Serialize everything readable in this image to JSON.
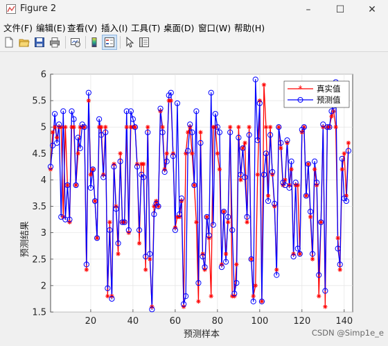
{
  "window": {
    "title": "Figure 2",
    "minimize_glyph": "–",
    "maximize_glyph": "☐",
    "close_glyph": "✕",
    "icon": "matlab-figure-icon"
  },
  "menu": [
    "文件(F)",
    "编辑(E)",
    "查看(V)",
    "插入(I)",
    "工具(T)",
    "桌面(D)",
    "窗口(W)",
    "帮助(H)"
  ],
  "toolbar": {
    "icons": [
      "new-figure-icon",
      "open-file-icon",
      "save-icon",
      "print-icon",
      "link-plot-icon",
      "insert-colorbar-icon",
      "insert-legend-icon",
      "edit-plot-arrow-icon",
      "property-inspector-icon"
    ]
  },
  "watermark": "CSDN @Simp1e_e",
  "colors": {
    "series_true": "#ff0000",
    "series_pred": "#0000ff",
    "axes_bg": "#ffffff",
    "figure_bg": "#f0f0f0"
  },
  "chart_data": {
    "type": "line",
    "xlabel": "预测样本",
    "ylabel": "预测结果",
    "xlim": [
      1,
      144
    ],
    "ylim": [
      1.5,
      6
    ],
    "xticks": [
      20,
      40,
      60,
      80,
      100,
      120,
      140
    ],
    "yticks": [
      1.5,
      2,
      2.5,
      3,
      3.5,
      4,
      4.5,
      5,
      5.5,
      6
    ],
    "grid": true,
    "legend_position": "top-right",
    "series": [
      {
        "name": "真实值",
        "color": "#ff0000",
        "marker": "*",
        "values": [
          4.2,
          4.9,
          5.0,
          4.8,
          5.0,
          5.0,
          3.3,
          5.0,
          3.9,
          3.2,
          5.0,
          5.0,
          3.9,
          4.5,
          5.0,
          5.0,
          5.0,
          2.3,
          5.5,
          4.1,
          4.2,
          3.6,
          2.9,
          5.0,
          5.0,
          4.1,
          5.0,
          1.8,
          3.2,
          1.8,
          4.3,
          3.5,
          2.6,
          4.5,
          3.2,
          3.2,
          5.0,
          3.0,
          5.0,
          5.0,
          5.0,
          4.3,
          2.8,
          4.3,
          4.3,
          2.3,
          5.0,
          2.5,
          1.6,
          3.5,
          3.6,
          3.5,
          5.3,
          5.0,
          4.2,
          4.5,
          5.5,
          5.5,
          4.5,
          3.1,
          3.3,
          3.3,
          3.6,
          1.6,
          4.5,
          4.9,
          5.0,
          4.5,
          3.9,
          3.2,
          1.7,
          4.9,
          2.6,
          2.3,
          3.3,
          2.9,
          1.8,
          5.0,
          5.0,
          4.5,
          4.2,
          2.4,
          3.4,
          2.6,
          3.2,
          5.0,
          1.8,
          1.8,
          2.4,
          5.0,
          4.0,
          4.6,
          4.7,
          3.2,
          5.0,
          2.5,
          1.8,
          2.0,
          4.1,
          5.5,
          1.7,
          5.8,
          5.0,
          3.7,
          5.0,
          4.1,
          3.5,
          2.3,
          5.0,
          4.6,
          3.9,
          4.0,
          4.7,
          3.9,
          4.2,
          2.6,
          3.9,
          3.9,
          2.6,
          4.9,
          5.0,
          3.7,
          4.3,
          3.3,
          2.5,
          4.2,
          3.9,
          1.8,
          3.2,
          5.0,
          1.6,
          5.0,
          5.0,
          5.2,
          5.3,
          5.0,
          2.9,
          2.3,
          4.2,
          4.5,
          3.7,
          4.7
        ]
      },
      {
        "name": "预测值",
        "color": "#0000ff",
        "marker": "o",
        "values": [
          4.25,
          4.65,
          5.25,
          4.7,
          5.05,
          3.3,
          5.3,
          3.25,
          3.9,
          3.25,
          5.3,
          5.15,
          3.9,
          4.8,
          4.6,
          5.05,
          5.0,
          2.4,
          5.65,
          3.85,
          4.2,
          3.6,
          2.9,
          5.15,
          4.85,
          4.05,
          4.9,
          1.95,
          3.05,
          1.75,
          4.25,
          3.45,
          2.8,
          4.35,
          3.2,
          3.2,
          5.3,
          3.05,
          5.3,
          5.15,
          5.0,
          4.25,
          3.05,
          4.1,
          4.05,
          2.55,
          4.9,
          2.6,
          1.55,
          3.35,
          3.55,
          3.5,
          5.35,
          4.9,
          4.15,
          4.35,
          5.6,
          5.65,
          4.45,
          3.05,
          5.45,
          3.35,
          3.65,
          1.65,
          1.8,
          4.55,
          5.05,
          4.9,
          3.9,
          5.3,
          2.05,
          4.7,
          2.55,
          2.35,
          3.3,
          2.95,
          5.65,
          3.15,
          5.25,
          5.0,
          4.9,
          2.35,
          3.4,
          2.45,
          3.3,
          4.9,
          3.05,
          1.85,
          2.05,
          4.8,
          4.1,
          4.6,
          4.05,
          3.3,
          4.85,
          2.5,
          1.7,
          5.9,
          4.75,
          5.45,
          1.7,
          4.1,
          4.5,
          3.6,
          4.85,
          4.15,
          3.55,
          2.2,
          5.0,
          4.7,
          3.95,
          3.9,
          4.75,
          3.85,
          4.35,
          2.55,
          3.95,
          2.7,
          2.6,
          4.95,
          5.0,
          3.7,
          4.3,
          3.4,
          2.6,
          4.35,
          3.95,
          2.2,
          3.2,
          5.05,
          1.9,
          5.0,
          5.0,
          5.3,
          5.4,
          5.85,
          2.7,
          2.4,
          4.4,
          3.65,
          3.6,
          4.55
        ]
      }
    ]
  }
}
